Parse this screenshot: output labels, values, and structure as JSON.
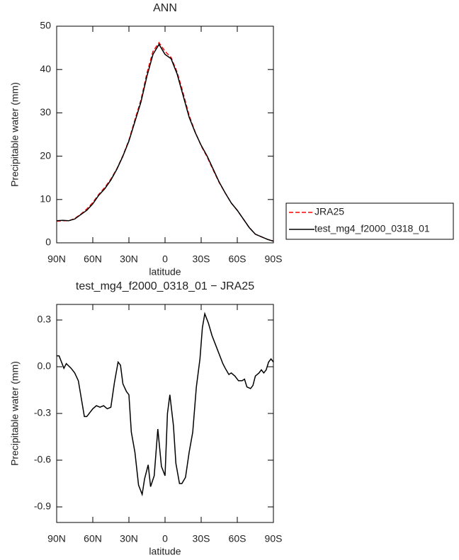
{
  "chart_data": [
    {
      "type": "line",
      "title": "ANN",
      "x_label": "latitude",
      "y_label": "Precipitable water (mm)",
      "x": [
        90,
        85,
        80,
        75,
        70,
        65,
        60,
        55,
        50,
        45,
        40,
        35,
        30,
        25,
        20,
        15,
        10,
        5,
        0,
        -5,
        -10,
        -15,
        -20,
        -25,
        -30,
        -35,
        -40,
        -45,
        -50,
        -55,
        -60,
        -65,
        -70,
        -75,
        -80,
        -85,
        -90
      ],
      "series": [
        {
          "name": "JRA25",
          "color": "#ff0000",
          "dash": true,
          "values": [
            5.0,
            5.1,
            5.1,
            5.6,
            6.6,
            7.8,
            9.3,
            11.2,
            12.8,
            14.7,
            17.1,
            20.1,
            23.7,
            28.4,
            33.0,
            39.2,
            44.2,
            46.2,
            44.2,
            42.8,
            39.4,
            34.6,
            29.4,
            25.6,
            22.4,
            19.8,
            16.8,
            13.9,
            11.5,
            9.2,
            7.5,
            5.5,
            3.5,
            2.0,
            1.4,
            0.8,
            0.4
          ]
        },
        {
          "name": "test_mg4_f2000_0318_01",
          "color": "#000000",
          "dash": false,
          "values": [
            5.1,
            5.2,
            5.1,
            5.5,
            6.5,
            7.5,
            9.0,
            11.0,
            12.5,
            14.5,
            17.0,
            20.0,
            23.5,
            28.0,
            32.5,
            38.5,
            43.5,
            45.8,
            43.5,
            42.5,
            39.0,
            34.0,
            29.0,
            25.5,
            22.5,
            20.0,
            17.0,
            14.0,
            11.5,
            9.2,
            7.5,
            5.5,
            3.5,
            2.0,
            1.4,
            0.8,
            0.4
          ]
        }
      ],
      "xlim": [
        90,
        -90
      ],
      "xticks": [
        {
          "value": 90,
          "label": "90N"
        },
        {
          "value": 60,
          "label": "60N"
        },
        {
          "value": 30,
          "label": "30N"
        },
        0,
        {
          "value": -30,
          "label": "30S"
        },
        {
          "value": -60,
          "label": "60S"
        },
        {
          "value": -90,
          "label": "90S"
        }
      ],
      "ylim": [
        0,
        50
      ],
      "yticks": [
        0,
        10,
        20,
        30,
        40,
        50
      ],
      "legend": "right"
    },
    {
      "type": "line",
      "title": "test_mg4_f2000_0318_01 − JRA25",
      "x_label": "latitude",
      "y_label": "Precipitable water (mm)",
      "x": [
        90,
        88,
        84,
        82,
        78,
        75,
        72,
        67,
        65,
        60,
        57,
        54,
        51,
        48,
        45,
        42,
        39,
        37,
        35,
        32,
        30,
        28,
        25,
        22,
        19,
        17,
        14,
        12,
        9,
        6,
        3,
        0,
        -2,
        -4,
        -7,
        -9,
        -12,
        -14,
        -17,
        -20,
        -23,
        -26,
        -29,
        -31,
        -33,
        -36,
        -39,
        -42,
        -45,
        -48,
        -50,
        -53,
        -55,
        -58,
        -61,
        -64,
        -66,
        -68,
        -71,
        -73,
        -75,
        -78,
        -80,
        -82,
        -84,
        -86,
        -88,
        -90
      ],
      "series": [
        {
          "name": "test_mg4_f2000_0318_01",
          "color": "#000000",
          "dash": false,
          "values": [
            0.07,
            0.07,
            -0.01,
            0.02,
            -0.01,
            -0.04,
            -0.09,
            -0.32,
            -0.32,
            -0.27,
            -0.25,
            -0.26,
            -0.25,
            -0.27,
            -0.26,
            -0.1,
            0.03,
            0.01,
            -0.11,
            -0.16,
            -0.18,
            -0.42,
            -0.55,
            -0.76,
            -0.82,
            -0.72,
            -0.63,
            -0.77,
            -0.7,
            -0.4,
            -0.64,
            -0.7,
            -0.3,
            -0.18,
            -0.38,
            -0.62,
            -0.75,
            -0.75,
            -0.71,
            -0.55,
            -0.42,
            -0.13,
            0.05,
            0.25,
            0.34,
            0.28,
            0.2,
            0.14,
            0.08,
            0.02,
            -0.01,
            -0.05,
            -0.04,
            -0.06,
            -0.09,
            -0.09,
            -0.08,
            -0.13,
            -0.14,
            -0.12,
            -0.06,
            -0.04,
            -0.02,
            -0.04,
            -0.02,
            0.03,
            0.05,
            0.03
          ]
        }
      ],
      "xlim": [
        90,
        -90
      ],
      "xticks": [
        {
          "value": 90,
          "label": "90N"
        },
        {
          "value": 60,
          "label": "60N"
        },
        {
          "value": 30,
          "label": "30N"
        },
        0,
        {
          "value": -30,
          "label": "30S"
        },
        {
          "value": -60,
          "label": "60S"
        },
        {
          "value": -90,
          "label": "90S"
        }
      ],
      "ylim": [
        -1.0,
        0.4
      ],
      "yticks": [
        0.3,
        {
          "value": 0,
          "label": "0.0"
        },
        -0.3,
        -0.6,
        -0.9
      ]
    }
  ]
}
